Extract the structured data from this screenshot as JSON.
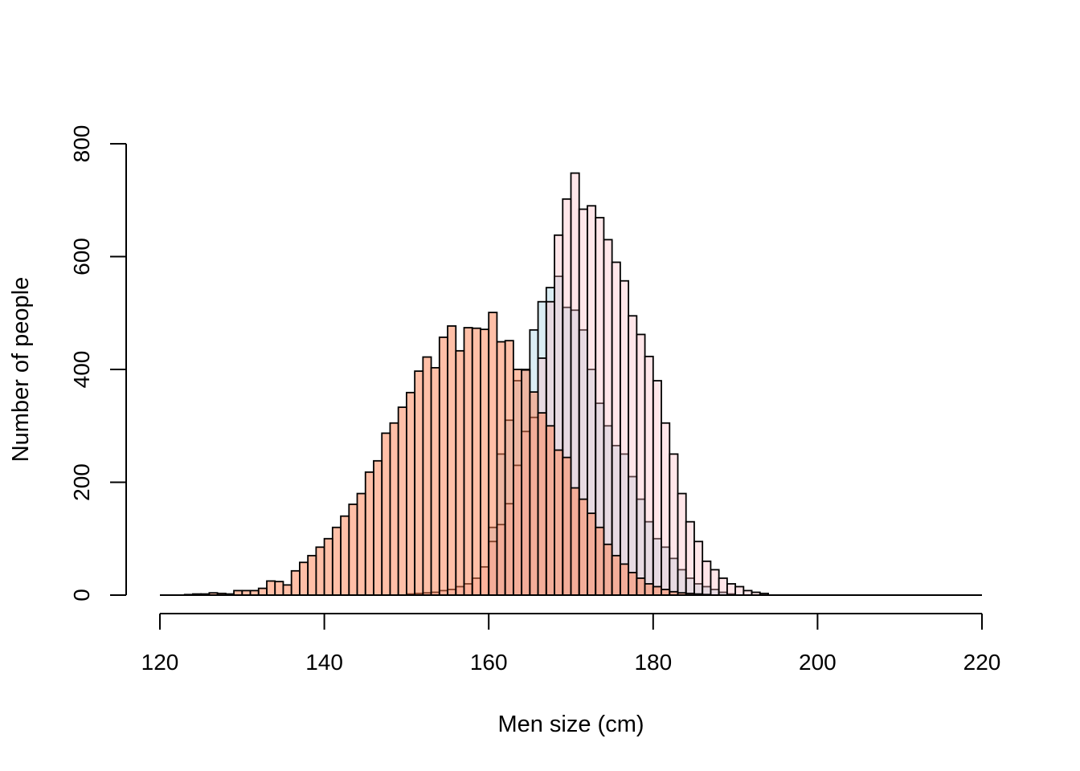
{
  "chart_data": {
    "type": "bar",
    "subtype": "overlaid-histogram",
    "xlabel": "Men size (cm)",
    "ylabel": "Number of people",
    "xlim": [
      120,
      220
    ],
    "ylim": [
      0,
      800
    ],
    "x_ticks": [
      120,
      140,
      160,
      180,
      200,
      220
    ],
    "y_ticks": [
      0,
      200,
      400,
      600,
      800
    ],
    "bin_width": 1,
    "series": [
      {
        "color": "#ADD8E6",
        "opacity": 0.45,
        "bin_start": 160,
        "values": [
          120,
          250,
          310,
          380,
          400,
          470,
          520,
          545,
          565,
          510,
          505,
          470,
          400,
          340,
          300,
          265,
          250,
          210,
          170,
          130,
          100,
          85,
          65,
          45,
          30,
          20,
          15,
          10,
          5,
          2
        ]
      },
      {
        "color": "#FFB6C1",
        "opacity": 0.35,
        "bin_start": 150,
        "values": [
          2,
          3,
          4,
          5,
          8,
          10,
          15,
          20,
          30,
          50,
          95,
          125,
          162,
          230,
          290,
          315,
          420,
          520,
          638,
          702,
          748,
          684,
          690,
          669,
          630,
          590,
          557,
          495,
          462,
          423,
          380,
          305,
          250,
          180,
          130,
          95,
          60,
          45,
          30,
          20,
          15,
          8,
          5,
          3
        ]
      },
      {
        "color": "#FF7F50",
        "opacity": 0.5,
        "bin_start": 123,
        "values": [
          1,
          2,
          2,
          4,
          3,
          2,
          8,
          8,
          8,
          12,
          25,
          24,
          18,
          43,
          58,
          70,
          85,
          100,
          120,
          140,
          161,
          180,
          218,
          238,
          287,
          305,
          333,
          359,
          397,
          422,
          403,
          457,
          477,
          433,
          474,
          473,
          471,
          501,
          449,
          451,
          400,
          399,
          360,
          323,
          300,
          257,
          244,
          190,
          170,
          145,
          120,
          90,
          70,
          55,
          40,
          30,
          20,
          15,
          10,
          6,
          4,
          3,
          2,
          1
        ]
      }
    ]
  }
}
